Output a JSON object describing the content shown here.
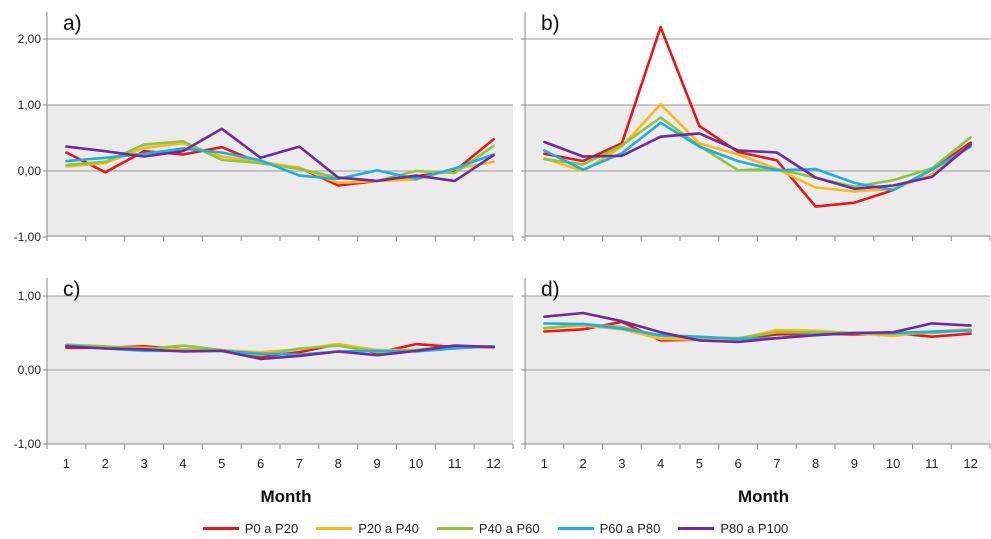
{
  "colors": {
    "plot_bg": "#ebebeb",
    "gridline": "#9a9a9a",
    "series": [
      "#e8161b",
      "#f9b81c",
      "#8cc63f",
      "#1faee4",
      "#6e2c9c"
    ]
  },
  "x_title": "Month",
  "chart_data": [
    {
      "type": "line",
      "panel_label": "a)",
      "x": [
        1,
        2,
        3,
        4,
        5,
        6,
        7,
        8,
        9,
        10,
        11,
        12
      ],
      "xlabel": "Month",
      "ylabel": "",
      "ylim": [
        -1.0,
        2.3
      ],
      "yticks": [
        "-1,00",
        "0,00",
        "1,00",
        "2,00"
      ],
      "grid": true,
      "series": [
        {
          "name": "P0 a P20",
          "values": [
            0.28,
            -0.02,
            0.3,
            0.25,
            0.36,
            0.12,
            0.05,
            -0.22,
            -0.15,
            -0.08,
            0.0,
            0.48
          ]
        },
        {
          "name": "P20 a P40",
          "values": [
            0.07,
            0.12,
            0.35,
            0.42,
            0.22,
            0.14,
            0.05,
            -0.18,
            -0.15,
            -0.13,
            0.03,
            0.14
          ]
        },
        {
          "name": "P40 a P60",
          "values": [
            0.09,
            0.14,
            0.4,
            0.45,
            0.17,
            0.12,
            0.03,
            -0.1,
            -0.15,
            0.0,
            -0.03,
            0.38
          ]
        },
        {
          "name": "P60 a P80",
          "values": [
            0.15,
            0.2,
            0.26,
            0.34,
            0.28,
            0.16,
            -0.07,
            -0.12,
            0.01,
            -0.12,
            0.04,
            0.25
          ]
        },
        {
          "name": "P80 a P100",
          "values": [
            0.37,
            0.3,
            0.22,
            0.3,
            0.64,
            0.2,
            0.37,
            -0.1,
            -0.15,
            -0.07,
            -0.15,
            0.24
          ]
        }
      ]
    },
    {
      "type": "line",
      "panel_label": "b)",
      "x": [
        1,
        2,
        3,
        4,
        5,
        6,
        7,
        8,
        9,
        10,
        11,
        12
      ],
      "xlabel": "Month",
      "ylabel": "",
      "ylim": [
        -1.0,
        2.3
      ],
      "yticks": [
        "-1,00",
        "0,00",
        "1,00",
        "2,00"
      ],
      "grid": true,
      "series": [
        {
          "name": "P0 a P20",
          "values": [
            0.26,
            0.15,
            0.42,
            2.18,
            0.68,
            0.29,
            0.16,
            -0.54,
            -0.48,
            -0.29,
            0.02,
            0.43
          ]
        },
        {
          "name": "P20 a P40",
          "values": [
            0.19,
            0.0,
            0.37,
            1.01,
            0.42,
            0.25,
            0.03,
            -0.25,
            -0.31,
            -0.27,
            -0.05,
            0.4
          ]
        },
        {
          "name": "P40 a P60",
          "values": [
            0.18,
            0.1,
            0.39,
            0.81,
            0.38,
            0.01,
            0.03,
            -0.1,
            -0.24,
            -0.14,
            0.04,
            0.51
          ]
        },
        {
          "name": "P60 a P80",
          "values": [
            0.31,
            0.02,
            0.27,
            0.73,
            0.37,
            0.15,
            0.01,
            0.03,
            -0.18,
            -0.29,
            0.02,
            0.37
          ]
        },
        {
          "name": "P80 a P100",
          "values": [
            0.44,
            0.22,
            0.23,
            0.52,
            0.57,
            0.31,
            0.28,
            -0.1,
            -0.27,
            -0.22,
            -0.09,
            0.4
          ]
        }
      ]
    },
    {
      "type": "line",
      "panel_label": "c)",
      "x": [
        1,
        2,
        3,
        4,
        5,
        6,
        7,
        8,
        9,
        10,
        11,
        12
      ],
      "xlabel": "Month",
      "ylabel": "",
      "ylim": [
        -1.0,
        1.15
      ],
      "yticks": [
        "-1,00",
        "0,00",
        "1,00"
      ],
      "grid": true,
      "series": [
        {
          "name": "P0 a P20",
          "values": [
            0.3,
            0.3,
            0.32,
            0.28,
            0.26,
            0.18,
            0.24,
            0.35,
            0.23,
            0.35,
            0.31,
            0.31
          ]
        },
        {
          "name": "P20 a P40",
          "values": [
            0.33,
            0.31,
            0.3,
            0.28,
            0.27,
            0.24,
            0.28,
            0.35,
            0.27,
            0.27,
            0.31,
            0.32
          ]
        },
        {
          "name": "P40 a P60",
          "values": [
            0.34,
            0.32,
            0.28,
            0.33,
            0.27,
            0.2,
            0.29,
            0.33,
            0.24,
            0.27,
            0.32,
            0.32
          ]
        },
        {
          "name": "P60 a P80",
          "values": [
            0.33,
            0.29,
            0.26,
            0.26,
            0.26,
            0.22,
            0.21,
            0.25,
            0.26,
            0.25,
            0.29,
            0.32
          ]
        },
        {
          "name": "P80 a P100",
          "values": [
            0.32,
            0.29,
            0.28,
            0.25,
            0.26,
            0.15,
            0.19,
            0.25,
            0.2,
            0.26,
            0.33,
            0.31
          ]
        }
      ]
    },
    {
      "type": "line",
      "panel_label": "d)",
      "x": [
        1,
        2,
        3,
        4,
        5,
        6,
        7,
        8,
        9,
        10,
        11,
        12
      ],
      "xlabel": "Month",
      "ylabel": "",
      "ylim": [
        -1.0,
        1.15
      ],
      "yticks": [
        "-1,00",
        "0,00",
        "1,00"
      ],
      "grid": true,
      "series": [
        {
          "name": "P0 a P20",
          "values": [
            0.52,
            0.55,
            0.65,
            0.4,
            0.41,
            0.42,
            0.48,
            0.49,
            0.48,
            0.5,
            0.45,
            0.49
          ]
        },
        {
          "name": "P20 a P40",
          "values": [
            0.57,
            0.6,
            0.55,
            0.42,
            0.41,
            0.42,
            0.54,
            0.53,
            0.5,
            0.46,
            0.52,
            0.55
          ]
        },
        {
          "name": "P40 a P60",
          "values": [
            0.56,
            0.62,
            0.58,
            0.46,
            0.44,
            0.43,
            0.51,
            0.51,
            0.5,
            0.49,
            0.5,
            0.54
          ]
        },
        {
          "name": "P60 a P80",
          "values": [
            0.63,
            0.62,
            0.56,
            0.47,
            0.45,
            0.42,
            0.43,
            0.48,
            0.5,
            0.5,
            0.52,
            0.53
          ]
        },
        {
          "name": "P80 a P100",
          "values": [
            0.72,
            0.77,
            0.66,
            0.51,
            0.4,
            0.38,
            0.43,
            0.47,
            0.5,
            0.51,
            0.63,
            0.6
          ]
        }
      ]
    }
  ]
}
